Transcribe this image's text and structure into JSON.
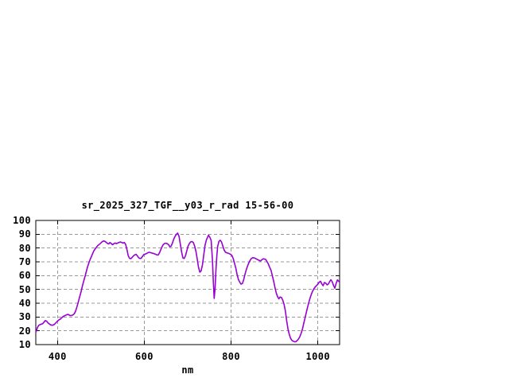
{
  "window": {
    "background": "#ffffff"
  },
  "colors": {
    "background": "#ffffff",
    "frame": "#000000",
    "grid": "#9a9a9a",
    "text": "#000000",
    "line": "#9800d3"
  },
  "chart_data": {
    "type": "line",
    "title": "sr_2025_327_TGF__y03_r_rad 15-56-00",
    "xlabel": "nm",
    "ylabel": "",
    "xlim": [
      350,
      1050
    ],
    "ylim": [
      10,
      100
    ],
    "x_ticks": [
      400,
      600,
      800,
      1000
    ],
    "y_ticks": [
      10,
      20,
      30,
      40,
      50,
      60,
      70,
      80,
      90,
      100
    ],
    "grid": true,
    "legend_position": "none",
    "line_color": "#9800d3",
    "series": [
      {
        "name": "sr_2025_327_TGF__y03_r_rad",
        "x": [
          350,
          352,
          354,
          357,
          360,
          363,
          366,
          369,
          372,
          375,
          378,
          381,
          384,
          388,
          391,
          394,
          397,
          400,
          403,
          406,
          409,
          412,
          415,
          418,
          421,
          424,
          427,
          430,
          433,
          436,
          439,
          442,
          445,
          448,
          451,
          454,
          457,
          460,
          463,
          466,
          469,
          472,
          475,
          478,
          481,
          484,
          487,
          490,
          493,
          496,
          499,
          503,
          506,
          509,
          512,
          515,
          518,
          521,
          524,
          527,
          530,
          533,
          536,
          539,
          542,
          545,
          548,
          551,
          554,
          557,
          560,
          563,
          566,
          569,
          572,
          575,
          578,
          581,
          584,
          587,
          590,
          593,
          596,
          599,
          602,
          605,
          608,
          611,
          614,
          617,
          620,
          623,
          626,
          629,
          632,
          635,
          638,
          641,
          644,
          647,
          650,
          653,
          656,
          659,
          662,
          665,
          668,
          671,
          674,
          677,
          680,
          683,
          686,
          689,
          692,
          695,
          698,
          701,
          704,
          707,
          710,
          713,
          716,
          719,
          722,
          725,
          728,
          731,
          734,
          737,
          740,
          743,
          746,
          748,
          751,
          754,
          757,
          759,
          761,
          763,
          765,
          767,
          769,
          772,
          775,
          778,
          781,
          784,
          787,
          790,
          793,
          796,
          799,
          802,
          805,
          808,
          811,
          814,
          817,
          820,
          823,
          826,
          829,
          832,
          835,
          838,
          841,
          844,
          847,
          850,
          853,
          856,
          859,
          862,
          865,
          868,
          871,
          874,
          877,
          880,
          883,
          886,
          889,
          892,
          895,
          898,
          901,
          904,
          907,
          910,
          913,
          916,
          919,
          922,
          925,
          928,
          931,
          934,
          937,
          940,
          943,
          946,
          949,
          952,
          955,
          958,
          961,
          964,
          967,
          970,
          973,
          976,
          979,
          982,
          985,
          988,
          991,
          994,
          997,
          1000,
          1003,
          1006,
          1009,
          1012,
          1015,
          1018,
          1021,
          1024,
          1027,
          1030,
          1033,
          1036,
          1039,
          1042,
          1045,
          1048,
          1050
        ],
        "y": [
          19,
          20.5,
          22.5,
          24,
          24.5,
          24.8,
          25.2,
          26.3,
          27.4,
          27,
          25.8,
          25,
          24.3,
          24,
          24.3,
          25,
          26,
          27,
          27.8,
          28.4,
          29.2,
          30.1,
          30.7,
          31.2,
          31.6,
          31.9,
          31.4,
          31,
          31.2,
          31.6,
          32.5,
          34.5,
          37.5,
          41,
          44.5,
          48,
          52,
          55.5,
          59,
          62.5,
          66,
          69,
          71.5,
          73.8,
          76,
          78,
          79.5,
          80.7,
          81.8,
          82.6,
          83.4,
          84.6,
          85.1,
          84.9,
          84.2,
          83.4,
          83,
          84,
          83.2,
          82.4,
          83.2,
          83.6,
          83.2,
          83.7,
          84.1,
          84.4,
          84,
          83.6,
          84,
          82.6,
          79,
          74.5,
          72.5,
          72.3,
          73.2,
          74.3,
          75.1,
          75.4,
          74.4,
          73,
          72.4,
          72.6,
          74,
          75.3,
          75.6,
          76,
          76.5,
          76.9,
          76.7,
          76.4,
          76.2,
          75.8,
          75.5,
          75,
          74.9,
          76.5,
          78.8,
          81,
          82.6,
          83.3,
          83.5,
          83.1,
          82.4,
          80.9,
          81.5,
          83.8,
          86.5,
          88.6,
          89.9,
          90.8,
          88.5,
          83,
          77,
          72.8,
          72.4,
          74.5,
          78,
          81.5,
          83.3,
          84.5,
          84.7,
          83.9,
          81.5,
          77.5,
          72,
          66,
          62.5,
          63.5,
          68,
          75,
          82,
          85.8,
          88,
          89.3,
          87.9,
          85.5,
          71.5,
          56,
          43.5,
          50.5,
          64,
          74,
          81.3,
          84.8,
          85.7,
          84.3,
          81.4,
          78.6,
          77,
          76.6,
          76.3,
          75.9,
          75.4,
          74.5,
          72.3,
          68.9,
          65.2,
          60.5,
          57.2,
          55.2,
          53.8,
          54.3,
          57,
          60.9,
          64.3,
          67,
          69.3,
          71.2,
          72.5,
          73,
          72.9,
          72.5,
          71.9,
          71.5,
          71,
          70.7,
          71.5,
          72.2,
          72,
          71.7,
          70,
          68.3,
          66,
          63.8,
          60,
          56,
          51.5,
          47.5,
          44.8,
          43.2,
          44.5,
          44.1,
          42.3,
          39.3,
          34.5,
          27.5,
          21.3,
          17.5,
          14.6,
          13.1,
          12.5,
          12.1,
          12.1,
          12.9,
          14,
          15.5,
          17.8,
          20.8,
          24.8,
          28.8,
          32.9,
          36.9,
          40.5,
          43.8,
          46.5,
          48.9,
          50.6,
          51.8,
          52.8,
          53.8,
          55.3,
          55.9,
          54,
          52.7,
          55,
          54.6,
          53.3,
          53.9,
          55.5,
          57,
          55.6,
          52.8,
          50.9,
          54.3,
          56.9,
          55.9,
          55.2
        ]
      }
    ]
  }
}
